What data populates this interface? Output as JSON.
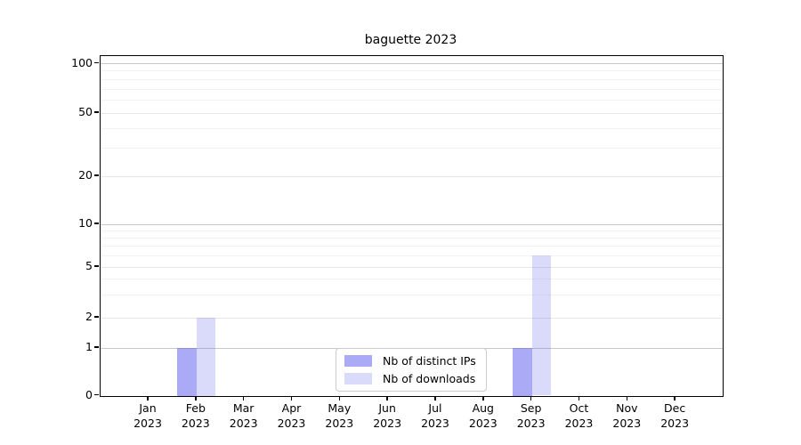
{
  "title": "baguette 2023",
  "chart_data": {
    "type": "bar",
    "title": "baguette 2023",
    "categories": [
      "Jan 2023",
      "Feb 2023",
      "Mar 2023",
      "Apr 2023",
      "May 2023",
      "Jun 2023",
      "Jul 2023",
      "Aug 2023",
      "Sep 2023",
      "Oct 2023",
      "Nov 2023",
      "Dec 2023"
    ],
    "series": [
      {
        "name": "Nb of distinct IPs",
        "opacity": 0.5,
        "values": [
          0,
          1,
          0,
          0,
          0,
          0,
          0,
          0,
          1,
          0,
          0,
          0
        ]
      },
      {
        "name": "Nb of downloads",
        "opacity": 0.22,
        "values": [
          0,
          2,
          0,
          0,
          0,
          0,
          0,
          0,
          6,
          0,
          0,
          0
        ]
      }
    ],
    "xlabel": "",
    "ylabel": "",
    "y_axis": {
      "scale": "symlog",
      "major_ticks": [
        0,
        1,
        2,
        5,
        10,
        20,
        50,
        100
      ],
      "major_tick_labels": [
        "0",
        "1",
        "2",
        "5",
        "10",
        "20",
        "50",
        "100"
      ],
      "mid_grid_values": [
        2,
        5,
        20,
        50
      ],
      "major_grid_values": [
        1,
        10,
        100
      ],
      "minor_grid_values": [
        3,
        4,
        6,
        7,
        8,
        9,
        30,
        40,
        60,
        70,
        80,
        90
      ],
      "ylim": [
        0,
        120
      ]
    },
    "grid": true,
    "legend_position": "bottom-center",
    "colors": {
      "bar_base": "#5555ee",
      "grid_major": "#c8c8c8",
      "grid_mid": "#e6e6e6",
      "grid_minor": "#f2f2f2",
      "spine": "#000000",
      "background": "#ffffff"
    }
  }
}
